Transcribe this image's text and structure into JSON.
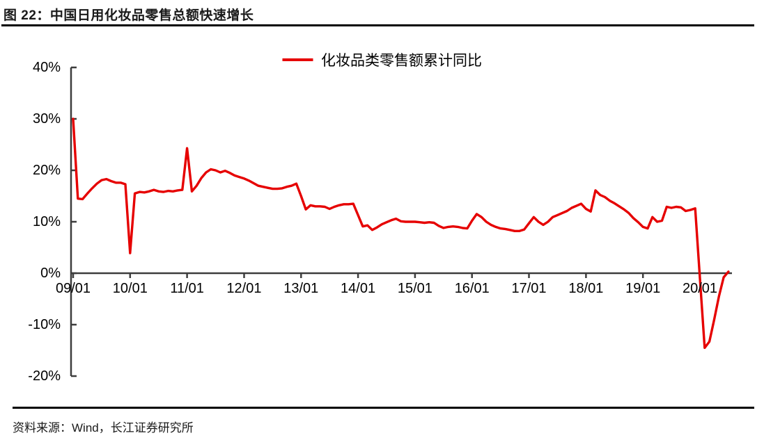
{
  "figure": {
    "title": "图 22：中国日用化妆品零售总额快速增长",
    "source": "资料来源：Wind，长江证券研究所"
  },
  "chart_data": {
    "type": "line",
    "title": "图 22：中国日用化妆品零售总额快速增长",
    "legend": [
      "化妆品类零售额累计同比"
    ],
    "legend_position": "top-center",
    "grid": false,
    "line_color": "#e60000",
    "axis_color": "#3d3d3d",
    "ylim": [
      -20,
      40
    ],
    "xlabel": "",
    "ylabel": "",
    "y_ticks": [
      {
        "value": 40,
        "label": "40%"
      },
      {
        "value": 30,
        "label": "30%"
      },
      {
        "value": 20,
        "label": "20%"
      },
      {
        "value": 10,
        "label": "10%"
      },
      {
        "value": 0,
        "label": "0%"
      },
      {
        "value": -10,
        "label": "-10%"
      },
      {
        "value": -20,
        "label": "-20%"
      }
    ],
    "x_ticks": [
      "09/01",
      "10/01",
      "11/01",
      "12/01",
      "13/01",
      "14/01",
      "15/01",
      "16/01",
      "17/01",
      "18/01",
      "19/01",
      "20/01"
    ],
    "series": [
      {
        "name": "化妆品类零售额累计同比",
        "unit": "percent_yoy_cumulative",
        "start_month": "2009-01",
        "months_per_point": 1,
        "monthly_values": [
          30.0,
          14.5,
          14.4,
          15.5,
          16.5,
          17.4,
          18.1,
          18.3,
          17.9,
          17.6,
          17.6,
          17.3,
          3.9,
          15.5,
          15.8,
          15.7,
          15.9,
          16.2,
          15.9,
          15.8,
          16.0,
          15.9,
          16.1,
          16.2,
          24.3,
          15.9,
          17.0,
          18.5,
          19.6,
          20.2,
          20.0,
          19.6,
          19.9,
          19.5,
          19.0,
          18.7,
          18.4,
          18.0,
          17.5,
          17.0,
          16.8,
          16.6,
          16.4,
          16.4,
          16.5,
          16.8,
          17.0,
          17.4,
          15.0,
          12.4,
          13.2,
          13.0,
          13.0,
          12.9,
          12.5,
          12.9,
          13.2,
          13.4,
          13.4,
          13.5,
          11.3,
          9.1,
          9.3,
          8.4,
          8.9,
          9.5,
          9.9,
          10.3,
          10.6,
          10.1,
          10.0,
          10.0,
          10.0,
          9.9,
          9.8,
          9.9,
          9.8,
          9.2,
          8.8,
          9.0,
          9.1,
          9.0,
          8.8,
          8.7,
          10.2,
          11.5,
          10.9,
          10.0,
          9.4,
          9.0,
          8.7,
          8.6,
          8.4,
          8.2,
          8.2,
          8.5,
          9.7,
          10.9,
          10.0,
          9.4,
          10.0,
          10.9,
          11.3,
          11.7,
          12.1,
          12.7,
          13.1,
          13.5,
          12.5,
          12.0,
          16.1,
          15.2,
          14.8,
          14.1,
          13.6,
          13.0,
          12.4,
          11.7,
          10.7,
          9.9,
          9.0,
          8.7,
          10.9,
          10.0,
          10.2,
          12.9,
          12.7,
          12.9,
          12.8,
          12.1,
          12.3,
          12.6,
          -1.0,
          -14.5,
          -13.3,
          -9.0,
          -4.5,
          -0.8,
          0.3
        ]
      }
    ]
  }
}
